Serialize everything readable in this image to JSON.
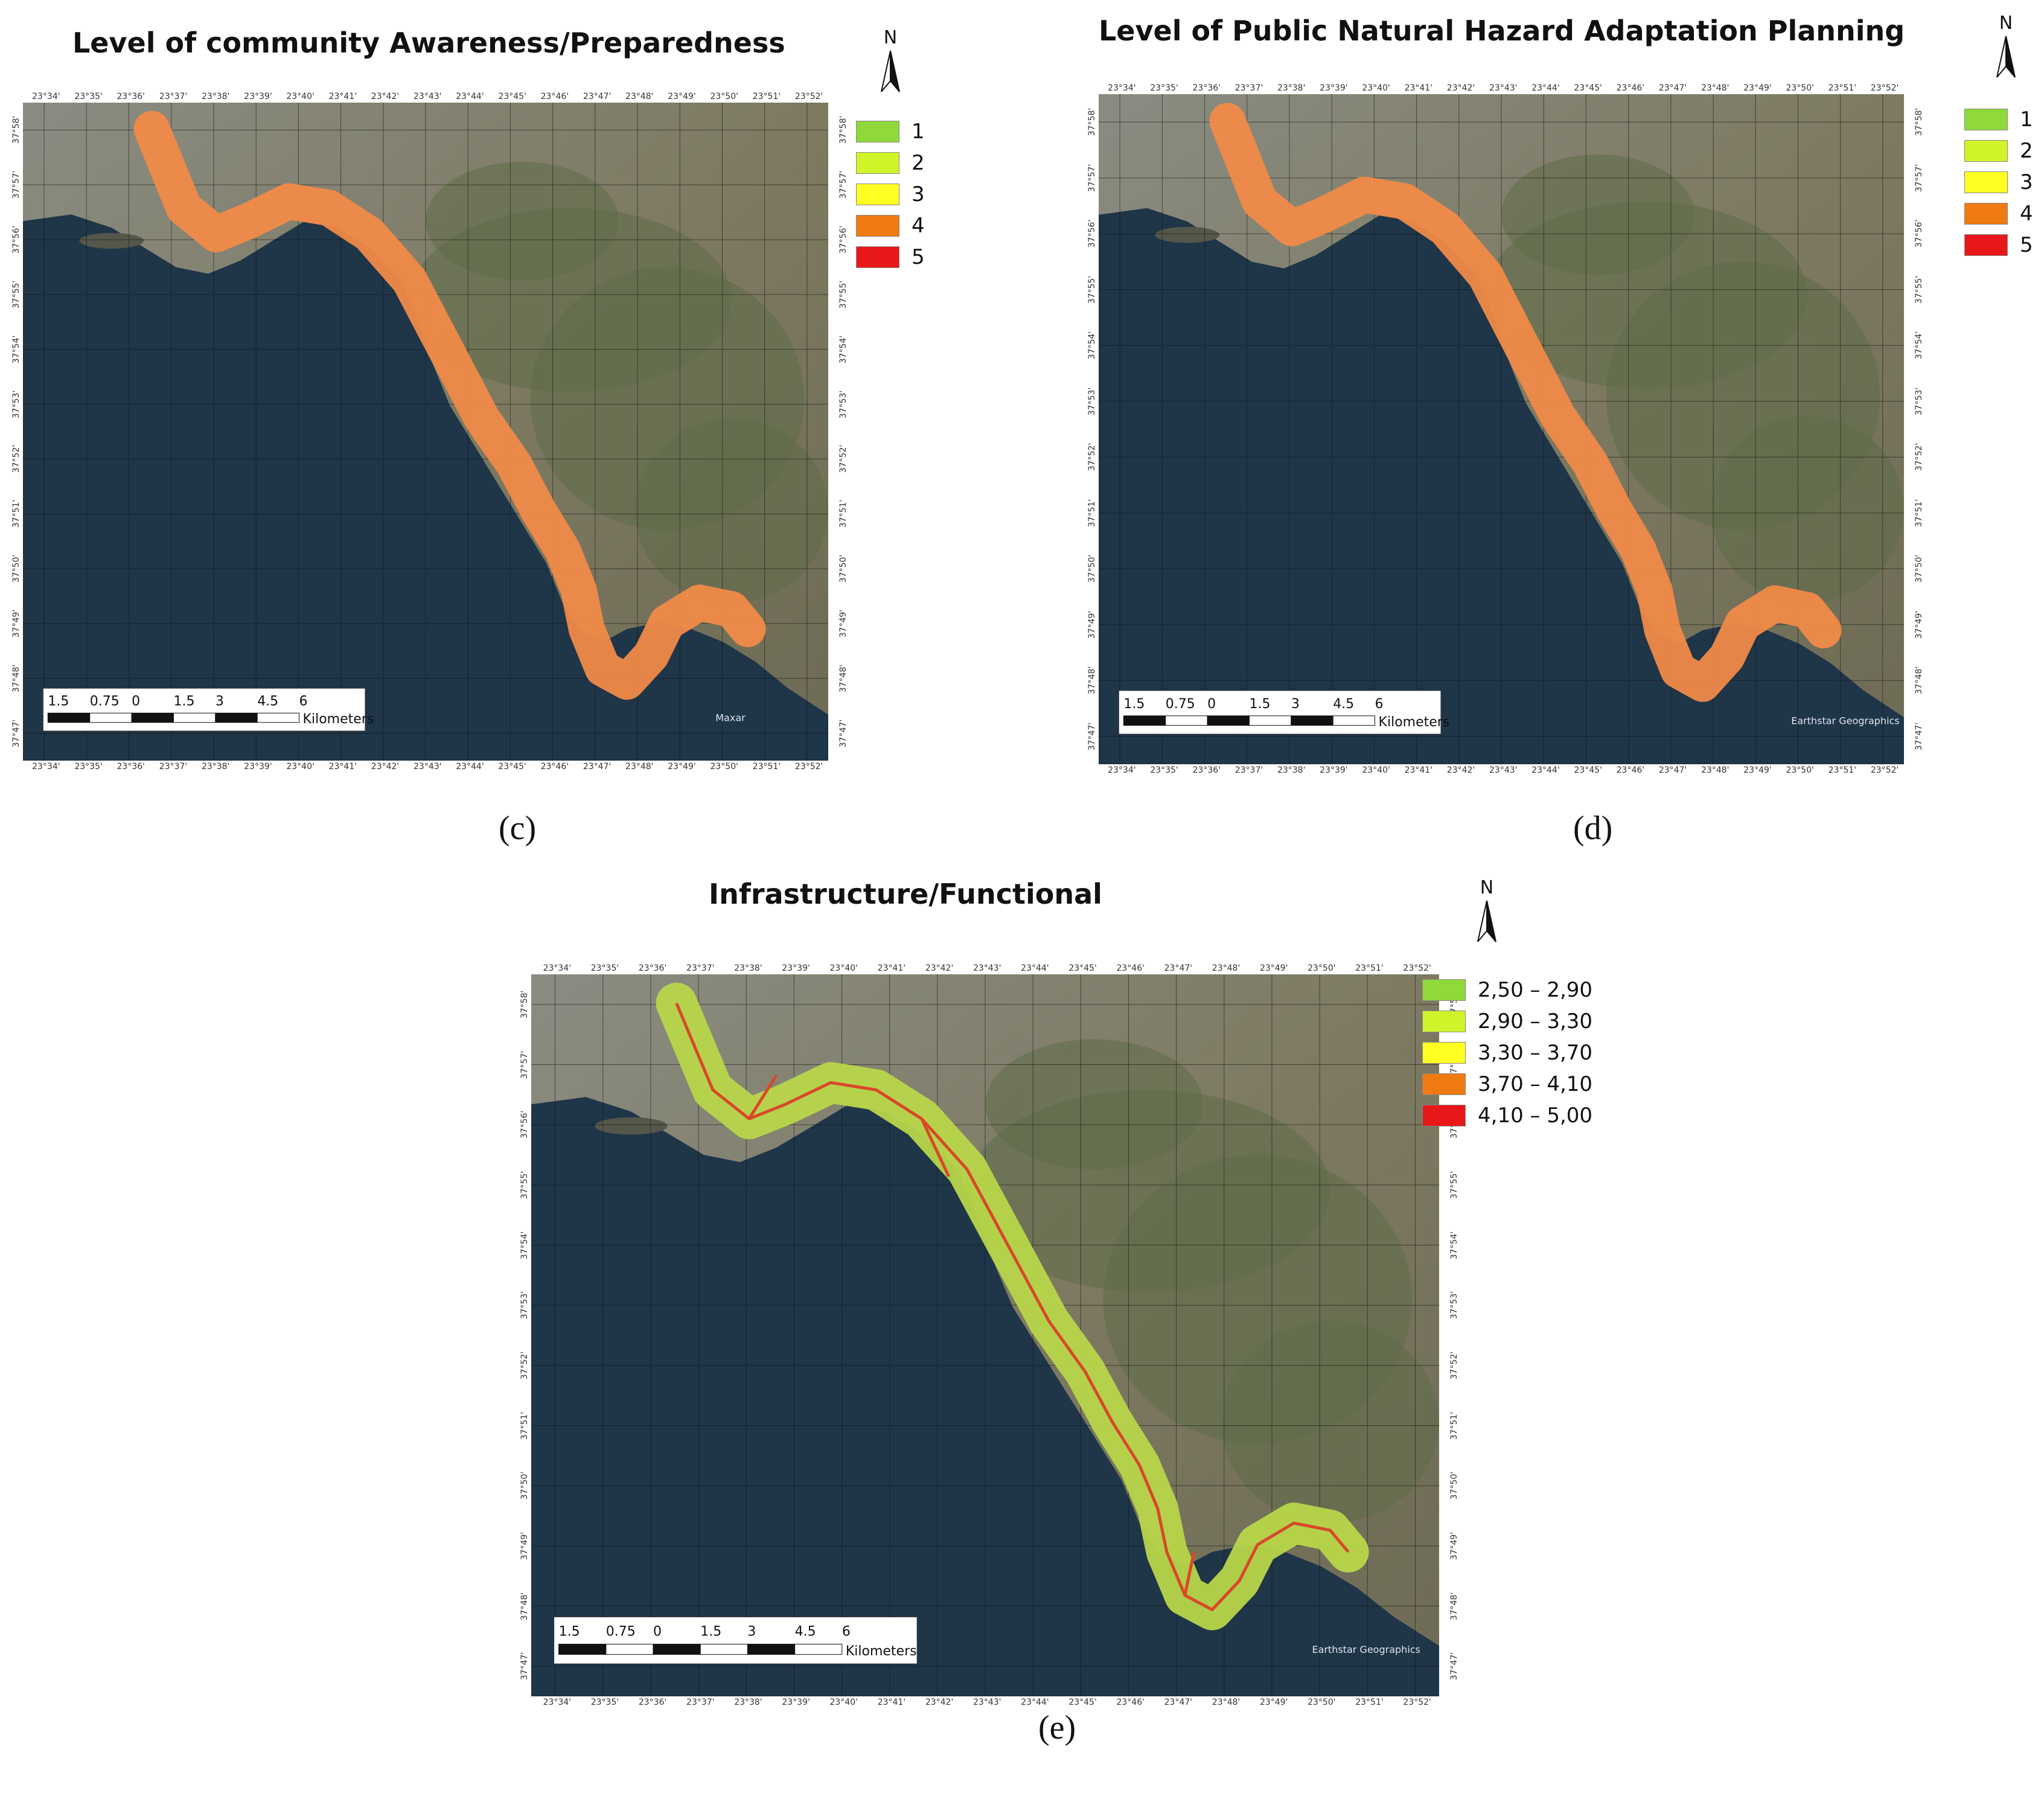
{
  "panels": [
    {
      "id": "c",
      "title": "Level of community Awareness/Preparedness",
      "caption": "(c)",
      "credit": "Maxar",
      "legend_type": "discrete",
      "legend": [
        {
          "label": "1",
          "color": "#8fd93a"
        },
        {
          "label": "2",
          "color": "#cff52a"
        },
        {
          "label": "3",
          "color": "#ffff22"
        },
        {
          "label": "4",
          "color": "#f07a12"
        },
        {
          "label": "5",
          "color": "#e8181a"
        }
      ],
      "zone_color": "#f08a48",
      "zone_level": "4"
    },
    {
      "id": "d",
      "title": "Level of Public Natural Hazard Adaptation Planning",
      "caption": "(d)",
      "credit": "Earthstar Geographics",
      "legend_type": "discrete",
      "legend": [
        {
          "label": "1",
          "color": "#8fd93a"
        },
        {
          "label": "2",
          "color": "#cff52a"
        },
        {
          "label": "3",
          "color": "#ffff22"
        },
        {
          "label": "4",
          "color": "#f07a12"
        },
        {
          "label": "5",
          "color": "#e8181a"
        }
      ],
      "zone_color": "#f08a48",
      "zone_level": "4"
    },
    {
      "id": "e",
      "title": "Infrastructure/Functional",
      "caption": "(e)",
      "credit": "Earthstar Geographics",
      "legend_type": "range",
      "legend": [
        {
          "label": "2,50 – 2,90",
          "color": "#8fd93a"
        },
        {
          "label": "2,90 – 3,30",
          "color": "#cff52a"
        },
        {
          "label": "3,30 – 3,70",
          "color": "#ffff22"
        },
        {
          "label": "3,70 – 4,10",
          "color": "#f07a12"
        },
        {
          "label": "4,10 – 5,00",
          "color": "#e8181a"
        }
      ],
      "zone_color": "#b8d64a",
      "road_color": "#d8482a"
    }
  ],
  "north_label": "N",
  "lon_ticks": [
    "23°34'",
    "23°35'",
    "23°36'",
    "23°37'",
    "23°38'",
    "23°39'",
    "23°40'",
    "23°41'",
    "23°42'",
    "23°43'",
    "23°44'",
    "23°45'",
    "23°46'",
    "23°47'",
    "23°48'",
    "23°49'",
    "23°50'",
    "23°51'",
    "23°52'"
  ],
  "lat_ticks": [
    "37°58'",
    "37°57'",
    "37°56'",
    "37°55'",
    "37°54'",
    "37°53'",
    "37°52'",
    "37°51'",
    "37°50'",
    "37°49'",
    "37°48'",
    "37°47'"
  ],
  "scale": {
    "numbers": [
      "1.5",
      "0.75",
      "0",
      "1.5",
      "3",
      "4.5",
      "6"
    ],
    "unit": "Kilometers"
  }
}
